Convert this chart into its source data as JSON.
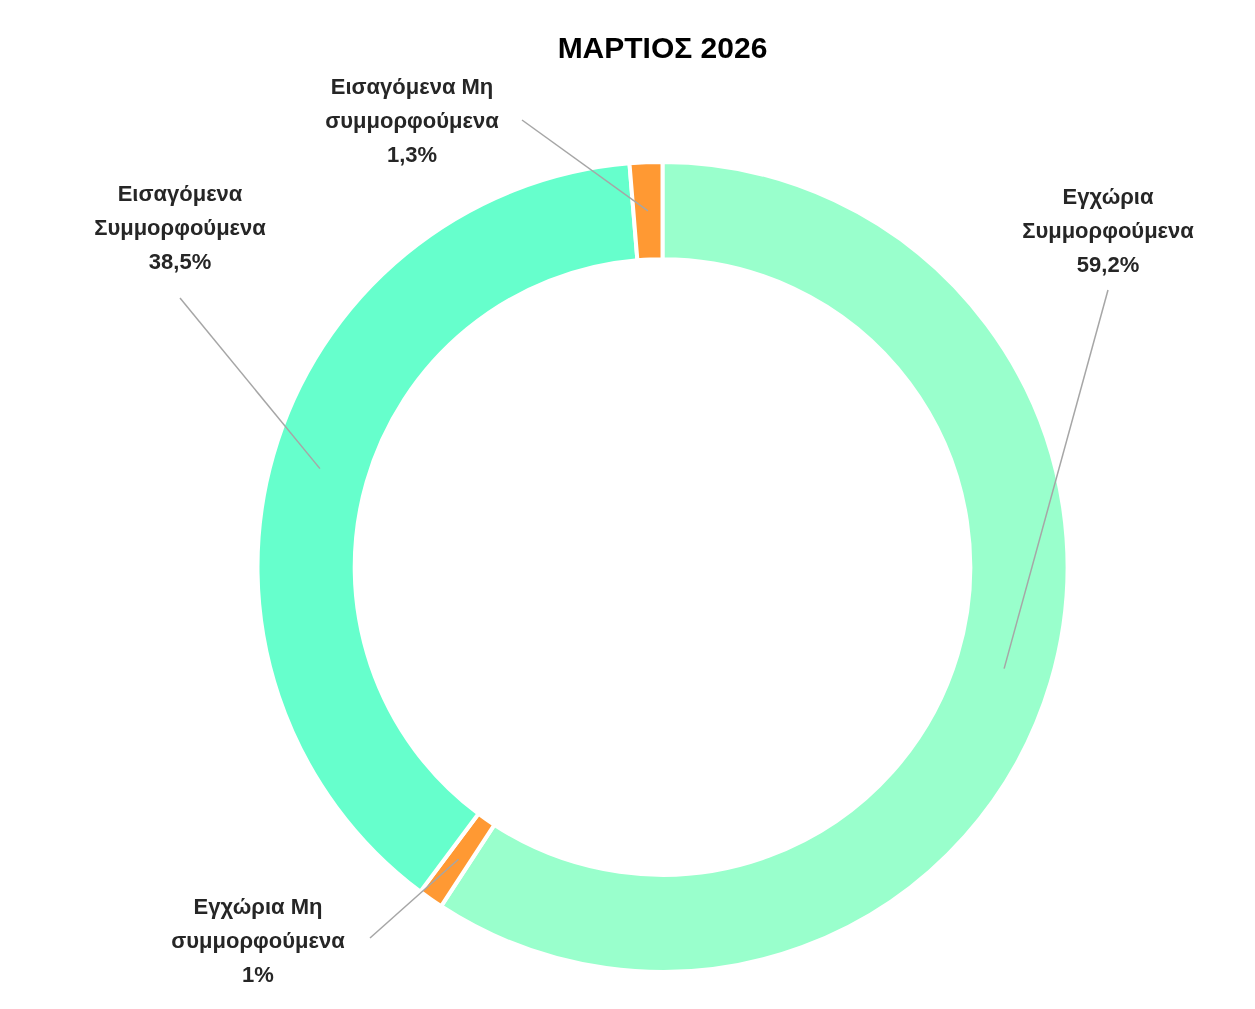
{
  "chart_data": {
    "type": "donut",
    "title": "ΜΑΡΤΙΟΣ 2026",
    "categories": [
      "Εγχώρια Συμμορφούμενα",
      "Εγχώρια Μη συμμορφούμενα",
      "Εισαγόμενα Συμμορφούμενα",
      "Εισαγόμενα Μη συμμορφούμενα"
    ],
    "values": [
      59.2,
      1,
      38.5,
      1.3
    ],
    "colors": [
      "#99ffcc",
      "#ff9933",
      "#66ffcc",
      "#ff9933"
    ],
    "value_labels": [
      "59,2%",
      "1%",
      "38,5%",
      "1,3%"
    ],
    "legend": false
  }
}
